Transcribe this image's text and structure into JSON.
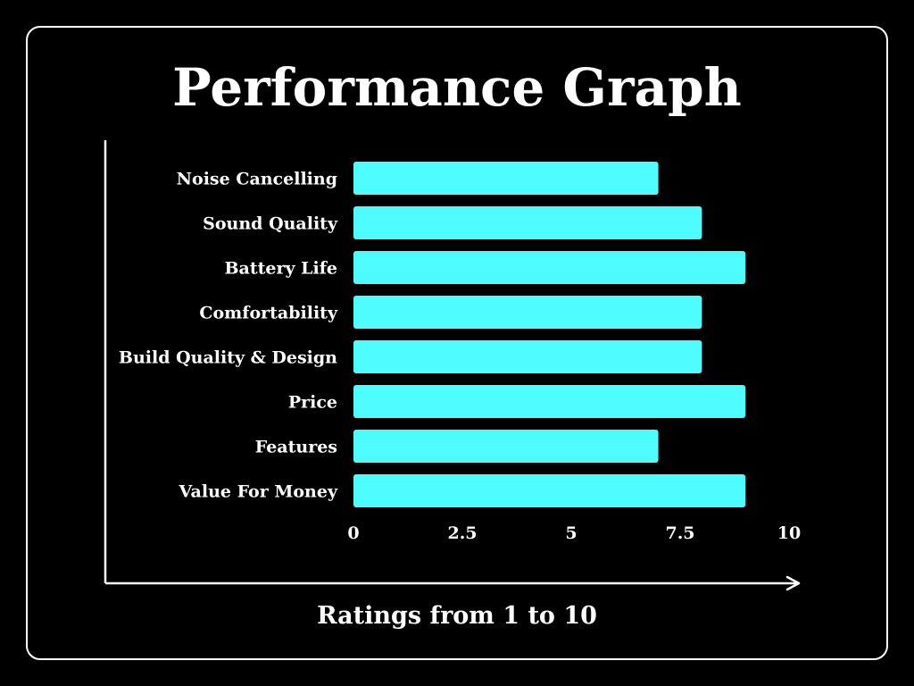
{
  "chart_data": {
    "type": "bar",
    "orientation": "horizontal",
    "title": "Performance Graph",
    "xlabel": "Ratings from 1 to 10",
    "ylabel": "",
    "categories": [
      "Noise Cancelling",
      "Sound Quality",
      "Battery Life",
      "Comfortability",
      "Build Quality & Design",
      "Price",
      "Features",
      "Value For Money"
    ],
    "values": [
      7,
      8,
      9,
      8,
      8,
      9,
      7,
      9
    ],
    "xlim": [
      0,
      10
    ],
    "xticks": [
      {
        "value": 0,
        "label": "0"
      },
      {
        "value": 2.5,
        "label": "2.5"
      },
      {
        "value": 5,
        "label": "5"
      },
      {
        "value": 7.5,
        "label": "7.5"
      },
      {
        "value": 10,
        "label": "10"
      }
    ],
    "grid": false,
    "colors": {
      "background": "#000000",
      "bar": "#4dfcff",
      "text": "#ffffff",
      "axis": "#ffffff"
    }
  }
}
